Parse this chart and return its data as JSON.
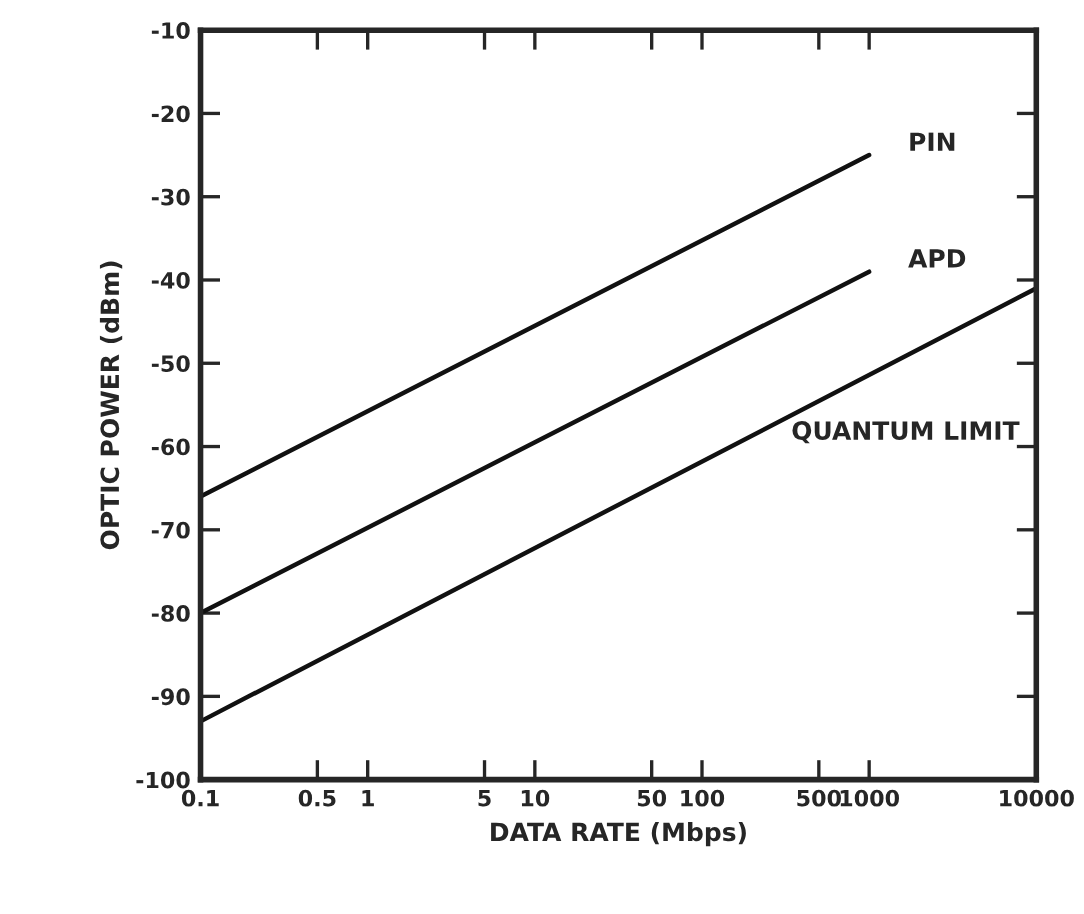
{
  "chart_data": {
    "type": "line",
    "xlabel": "DATA RATE (Mbps)",
    "ylabel": "OPTIC POWER (dBm)",
    "log": "x",
    "series": [
      {
        "name": "PIN",
        "color": "#111111",
        "x": [
          0.1,
          1000
        ],
        "values": [
          -66,
          -25
        ]
      },
      {
        "name": "APD",
        "color": "#111111",
        "x": [
          0.1,
          1000
        ],
        "values": [
          -80,
          -39
        ]
      },
      {
        "name": "QUANTUM LIMIT",
        "color": "#111111",
        "x": [
          0.1,
          10000
        ],
        "values": [
          -93,
          -41
        ]
      }
    ],
    "xlim": [
      0.1,
      10000
    ],
    "xticks": [
      0.1,
      0.5,
      1,
      5,
      10,
      50,
      100,
      500,
      1000,
      10000
    ],
    "ylim": [
      -100,
      -10
    ],
    "yticks": [
      -100,
      -90,
      -80,
      -70,
      -60,
      -50,
      -40,
      -30,
      -20,
      -10
    ],
    "grid": false,
    "marker": "none",
    "line_style": "solid"
  }
}
